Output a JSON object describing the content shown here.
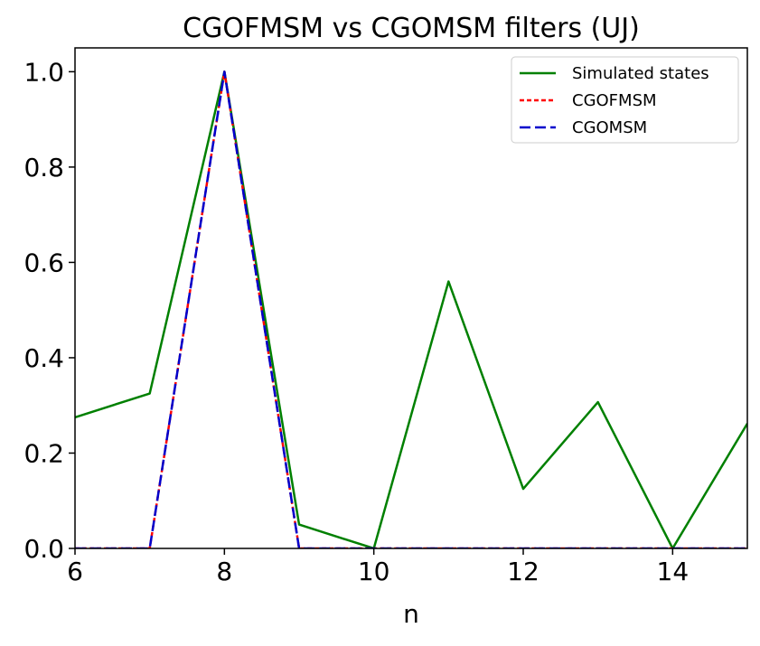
{
  "chart_data": {
    "type": "line",
    "title": "CGOFMSM vs CGOMSM filters (UJ)",
    "xlabel": "n",
    "ylabel": "",
    "xlim": [
      6,
      15
    ],
    "ylim": [
      0,
      1.05
    ],
    "xticks": [
      "6",
      "8",
      "10",
      "12",
      "14"
    ],
    "yticks": [
      "0.0",
      "0.2",
      "0.4",
      "0.6",
      "0.8",
      "1.0"
    ],
    "grid": false,
    "legend_position": "top-right",
    "series": [
      {
        "name": "Simulated states",
        "color": "#008000",
        "dash": "solid",
        "x": [
          6,
          7,
          8,
          9,
          10,
          11,
          12,
          13,
          14,
          15
        ],
        "y": [
          0.275,
          0.325,
          1.0,
          0.05,
          0.0,
          0.56,
          0.125,
          0.307,
          0.0,
          0.262
        ]
      },
      {
        "name": "CGOFMSM",
        "color": "#ff0000",
        "dash": "dotted",
        "x": [
          6,
          7,
          8,
          9,
          10,
          11,
          12,
          13,
          14,
          15
        ],
        "y": [
          0.0,
          0.0,
          1.0,
          0.0,
          0.0,
          0.0,
          0.0,
          0.0,
          0.0,
          0.0
        ]
      },
      {
        "name": "CGOMSM",
        "color": "#0000cc",
        "dash": "dashed",
        "x": [
          6,
          7,
          8,
          9,
          10,
          11,
          12,
          13,
          14,
          15
        ],
        "y": [
          0.0,
          0.0,
          1.0,
          0.0,
          0.0,
          0.0,
          0.0,
          0.0,
          0.0,
          0.0
        ]
      }
    ]
  }
}
